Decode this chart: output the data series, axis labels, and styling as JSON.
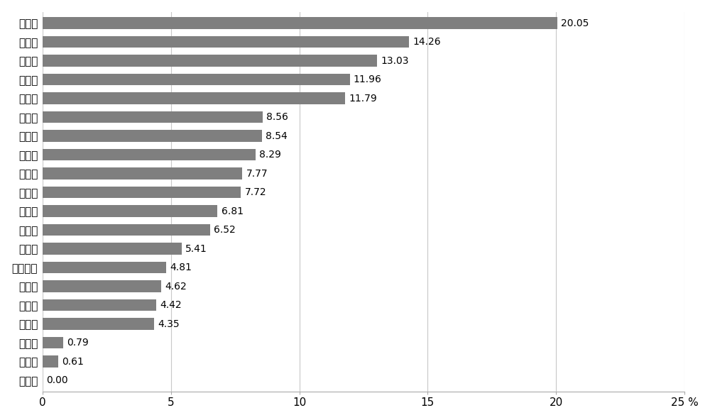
{
  "categories": [
    "大阪府",
    "群馬県",
    "愛知県",
    "三重県",
    "茨城県",
    "岡山県",
    "千葉県",
    "滋賀県",
    "長野県",
    "埼玉県",
    "岐阜県",
    "福島県",
    "栃木県",
    "神奈川県",
    "福岡県",
    "広島県",
    "宮城県",
    "静岡県",
    "兵庫県",
    "京都府"
  ],
  "values": [
    20.05,
    14.26,
    13.03,
    11.96,
    11.79,
    8.56,
    8.54,
    8.29,
    7.77,
    7.72,
    6.81,
    6.52,
    5.41,
    4.81,
    4.62,
    4.42,
    4.35,
    0.79,
    0.61,
    0.0
  ],
  "bar_color": "#7f7f7f",
  "background_color": "#ffffff",
  "xlim": [
    0,
    25
  ],
  "xticks": [
    0,
    5,
    10,
    15,
    20,
    25
  ],
  "grid_color": "#c8c8c8",
  "label_fontsize": 11,
  "tick_fontsize": 11,
  "value_fontsize": 10,
  "bar_height": 0.62
}
